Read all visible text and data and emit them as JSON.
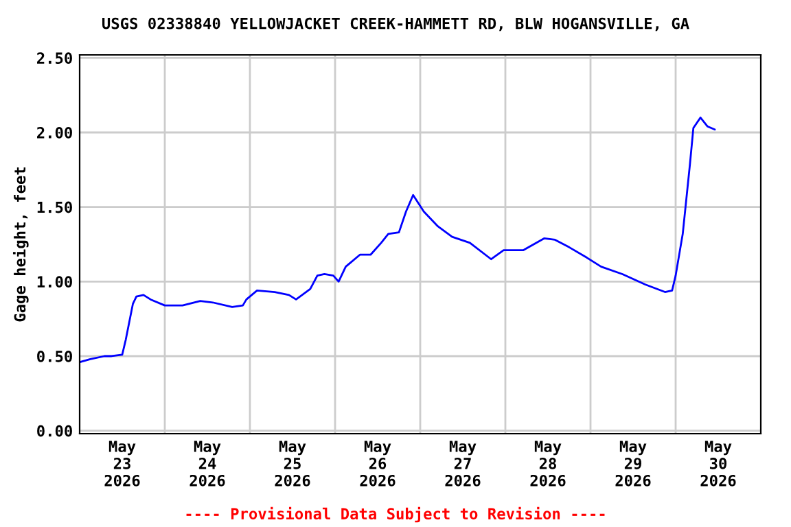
{
  "chart_data": {
    "type": "line",
    "title": "USGS 02338840 YELLOWJACKET CREEK-HAMMETT RD, BLW HOGANSVILLE, GA",
    "ylabel": "Gage height, feet",
    "x": [
      "2026-05-23T00:00",
      "2026-05-23T03:00",
      "2026-05-23T07:00",
      "2026-05-23T09:00",
      "2026-05-23T12:00",
      "2026-05-23T13:00",
      "2026-05-23T15:00",
      "2026-05-23T16:00",
      "2026-05-23T18:00",
      "2026-05-23T20:00",
      "2026-05-24T00:00",
      "2026-05-24T05:00",
      "2026-05-24T10:00",
      "2026-05-24T13:30",
      "2026-05-24T19:00",
      "2026-05-24T22:00",
      "2026-05-24T23:00",
      "2026-05-25T02:00",
      "2026-05-25T07:00",
      "2026-05-25T11:00",
      "2026-05-25T13:00",
      "2026-05-25T17:00",
      "2026-05-25T19:00",
      "2026-05-25T21:00",
      "2026-05-25T23:30",
      "2026-05-26T01:00",
      "2026-05-26T03:00",
      "2026-05-26T07:00",
      "2026-05-26T10:00",
      "2026-05-26T13:00",
      "2026-05-26T15:00",
      "2026-05-26T18:00",
      "2026-05-26T20:00",
      "2026-05-26T22:00",
      "2026-05-27T01:00",
      "2026-05-27T05:00",
      "2026-05-27T09:00",
      "2026-05-27T14:00",
      "2026-05-27T20:00",
      "2026-05-27T23:30",
      "2026-05-28T05:00",
      "2026-05-28T11:00",
      "2026-05-28T14:00",
      "2026-05-28T18:00",
      "2026-05-28T23:00",
      "2026-05-29T03:00",
      "2026-05-29T09:00",
      "2026-05-29T15:30",
      "2026-05-29T21:00",
      "2026-05-29T23:00",
      "2026-05-30T00:00",
      "2026-05-30T02:00",
      "2026-05-30T04:00",
      "2026-05-30T05:00",
      "2026-05-30T07:00",
      "2026-05-30T09:00",
      "2026-05-30T11:00"
    ],
    "series": [
      {
        "color": "#0000ff",
        "values": [
          0.46,
          0.48,
          0.5,
          0.5,
          0.51,
          0.61,
          0.85,
          0.9,
          0.91,
          0.88,
          0.84,
          0.84,
          0.87,
          0.86,
          0.83,
          0.84,
          0.88,
          0.94,
          0.93,
          0.91,
          0.88,
          0.95,
          1.04,
          1.05,
          1.04,
          1.0,
          1.1,
          1.18,
          1.18,
          1.26,
          1.32,
          1.33,
          1.47,
          1.58,
          1.47,
          1.37,
          1.3,
          1.26,
          1.15,
          1.21,
          1.21,
          1.29,
          1.28,
          1.23,
          1.16,
          1.1,
          1.05,
          0.98,
          0.93,
          0.94,
          1.04,
          1.32,
          1.78,
          2.03,
          2.1,
          2.04,
          2.02
        ]
      }
    ],
    "xlim": [
      "2026-05-23T00:00",
      "2026-05-31T00:00"
    ],
    "xticks": [
      {
        "value": "2026-05-23T12:00",
        "label": "May\n23\n2026"
      },
      {
        "value": "2026-05-24T12:00",
        "label": "May\n24\n2026"
      },
      {
        "value": "2026-05-25T12:00",
        "label": "May\n25\n2026"
      },
      {
        "value": "2026-05-26T12:00",
        "label": "May\n26\n2026"
      },
      {
        "value": "2026-05-27T12:00",
        "label": "May\n27\n2026"
      },
      {
        "value": "2026-05-28T12:00",
        "label": "May\n28\n2026"
      },
      {
        "value": "2026-05-29T12:00",
        "label": "May\n29\n2026"
      },
      {
        "value": "2026-05-30T12:00",
        "label": "May\n30\n2026"
      },
      {
        "value": "2026-05-24T00:00",
        "label": null
      },
      {
        "value": "2026-05-25T00:00",
        "label": null
      },
      {
        "value": "2026-05-26T00:00",
        "label": null
      },
      {
        "value": "2026-05-27T00:00",
        "label": null
      },
      {
        "value": "2026-05-28T00:00",
        "label": null
      },
      {
        "value": "2026-05-29T00:00",
        "label": null
      },
      {
        "value": "2026-05-30T00:00",
        "label": null
      }
    ],
    "ylim": [
      -0.02,
      2.52
    ],
    "yticks": [
      {
        "value": 0,
        "label": "0.00"
      },
      {
        "value": 0.5,
        "label": "0.50"
      },
      {
        "value": 1.0,
        "label": "1.00"
      },
      {
        "value": 1.5,
        "label": "1.50"
      },
      {
        "value": 2.0,
        "label": "2.00"
      },
      {
        "value": 2.5,
        "label": "2.50"
      }
    ],
    "grid": true,
    "annotations": [
      "---- Provisional Data Subject to Revision ----"
    ]
  }
}
